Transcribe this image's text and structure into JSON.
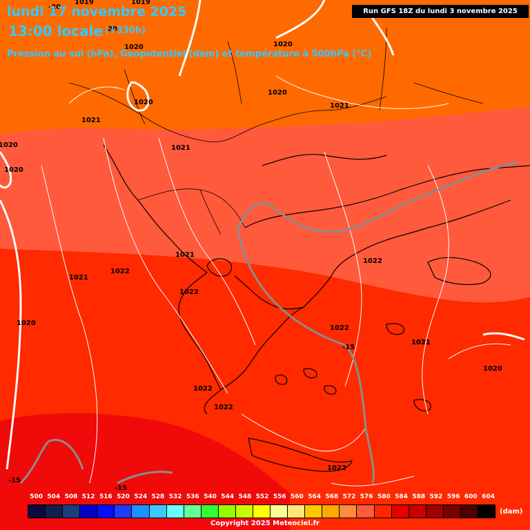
{
  "header": {
    "date": "lundi 17 novembre 2025",
    "time": "13:00 locale",
    "lead": "(+330h)",
    "subtitle": "Pression au sol (hPa), Geopotentiel (dam) et température à 500hPa (°C)",
    "run": "Run GFS 18Z du lundi 3 novembre 2025"
  },
  "isobar_labels": [
    "1019",
    "1019",
    "1020",
    "1020",
    "1020",
    "1020",
    "1020",
    "1021",
    "1021",
    "1021",
    "1021",
    "1021",
    "1020",
    "1020",
    "1021",
    "1022",
    "1022",
    "1022",
    "1022",
    "1022",
    "1022",
    "1022",
    "1021",
    "1020"
  ],
  "isotherm_labels": [
    "-20",
    "-20",
    "-15",
    "-15",
    "-15"
  ],
  "legend": {
    "unit": "(dam)",
    "values": [
      "500",
      "504",
      "508",
      "512",
      "516",
      "520",
      "524",
      "528",
      "532",
      "536",
      "540",
      "544",
      "548",
      "552",
      "556",
      "560",
      "564",
      "568",
      "572",
      "576",
      "580",
      "584",
      "588",
      "592",
      "596",
      "600",
      "604"
    ],
    "colors": [
      "#0a0a3c",
      "#10204c",
      "#1a3c80",
      "#0000c8",
      "#0010ff",
      "#1e3cff",
      "#1e90ff",
      "#3cc8ff",
      "#64ffff",
      "#64ff96",
      "#32ff32",
      "#96ff00",
      "#c8ff00",
      "#ffff00",
      "#ffff96",
      "#ffe678",
      "#ffc800",
      "#ffaa00",
      "#ff8c3c",
      "#ff5a3c",
      "#ff2800",
      "#e60000",
      "#c80000",
      "#a00000",
      "#780000",
      "#500000",
      "#000000"
    ]
  },
  "copyright": "Copyright 2025 Meteociel.fr"
}
